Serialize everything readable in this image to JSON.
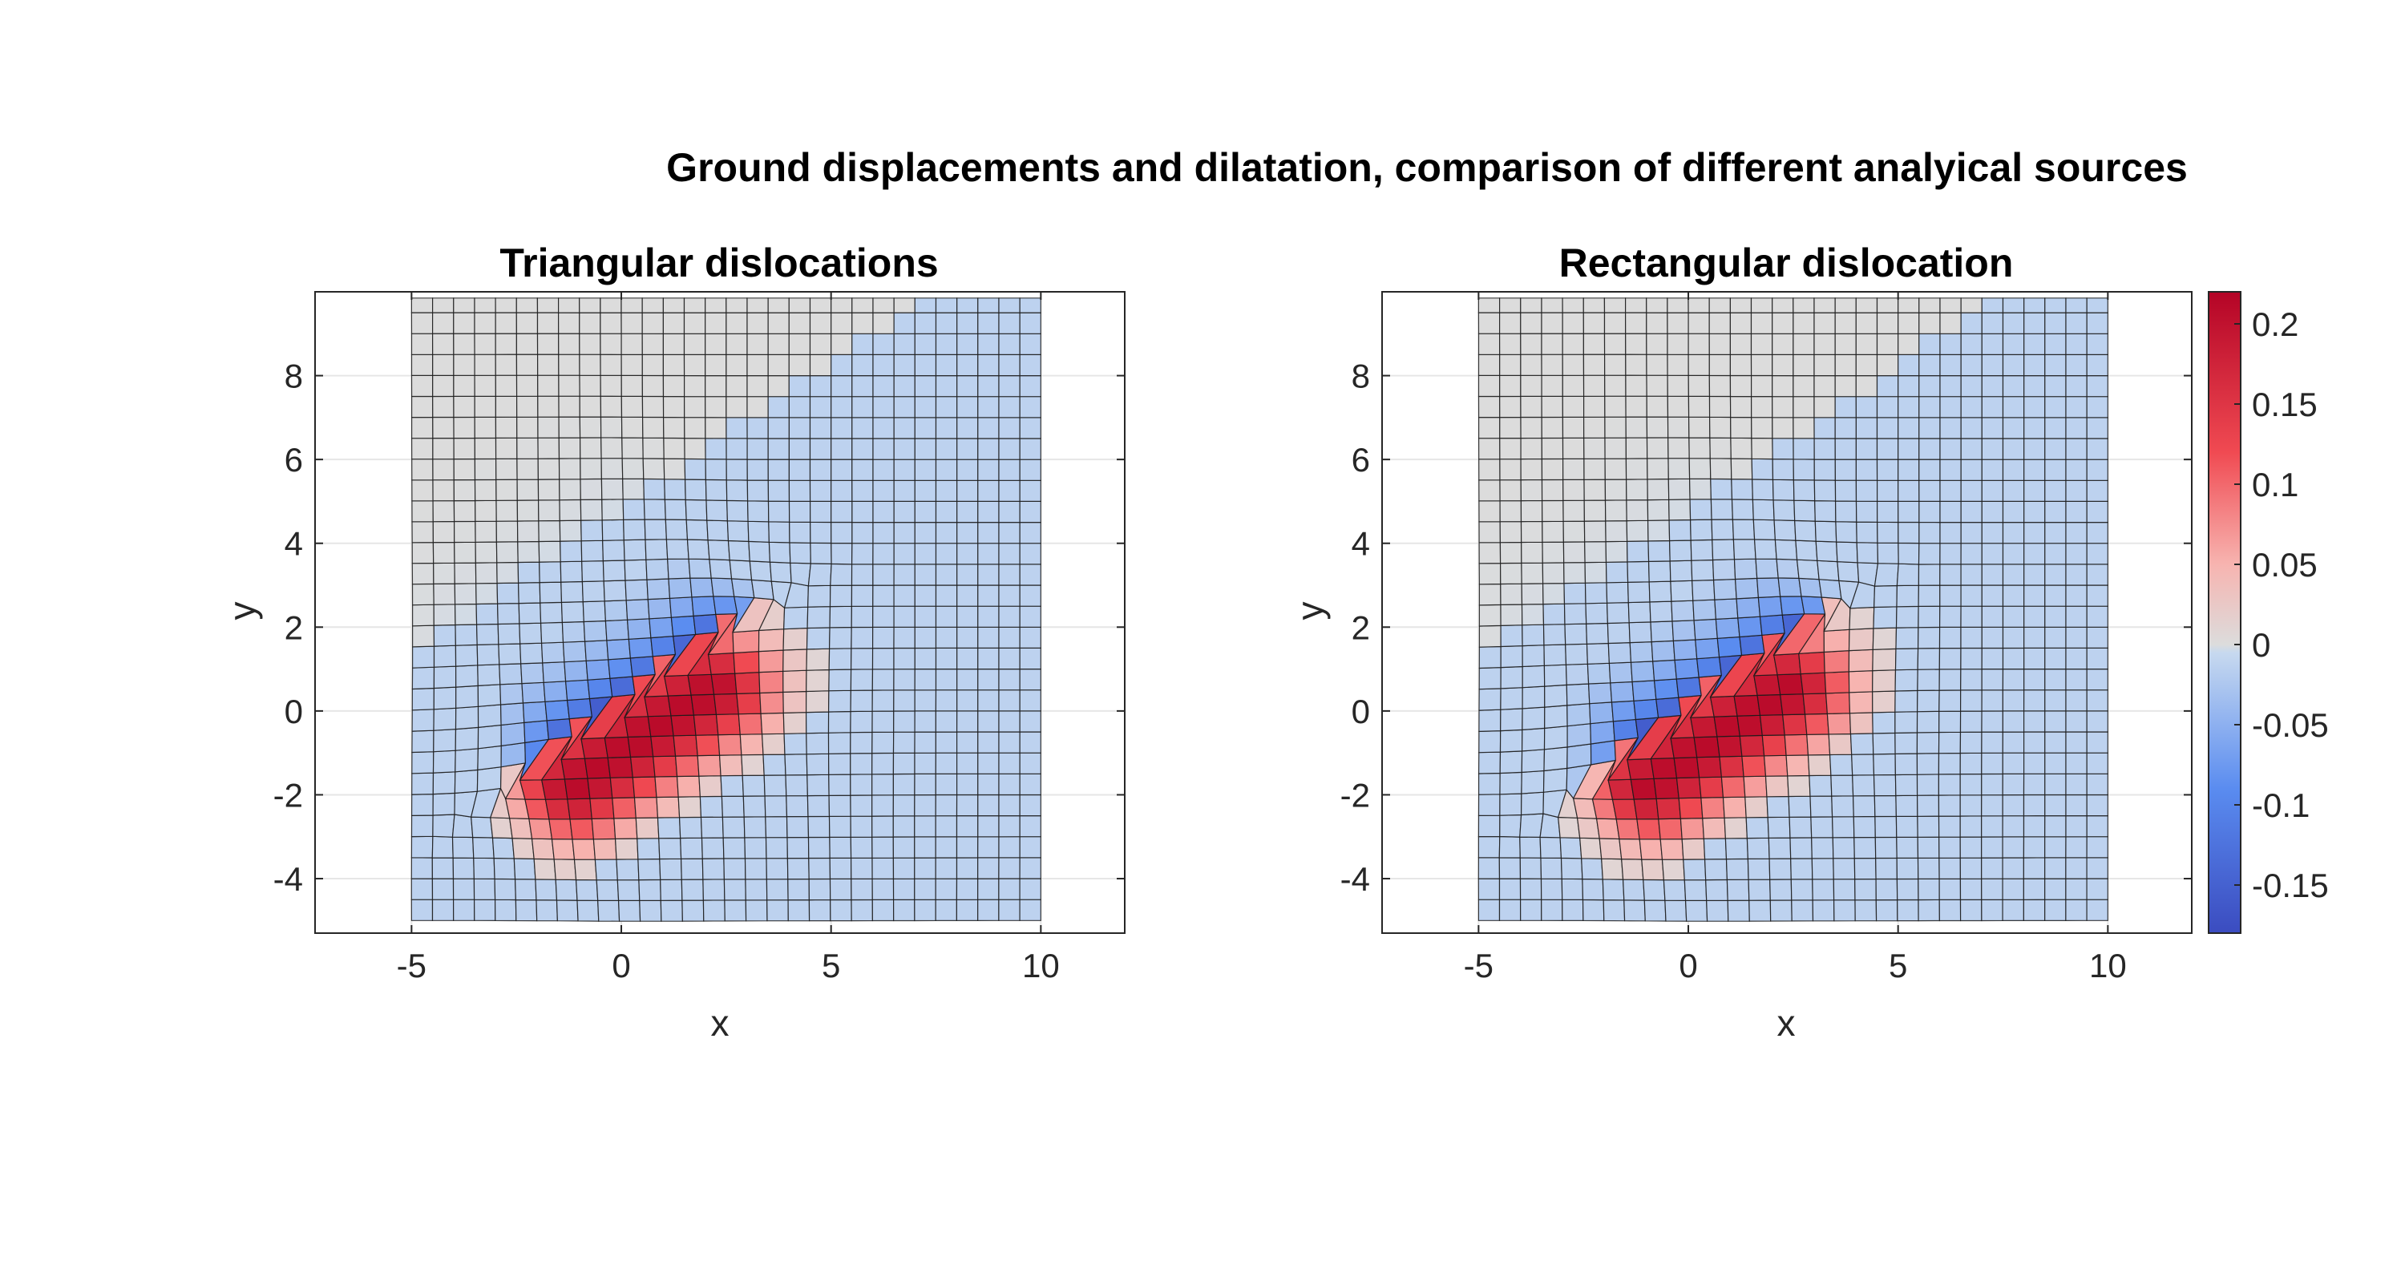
{
  "figure": {
    "title": "Ground displacements and dilatation, comparison of different analyical sources"
  },
  "colors": {
    "neg_extreme": "#3b4cc0",
    "neg": "#5a8cf0",
    "zero_blue": "#c7d9ef",
    "zero": "#dcdcdc",
    "pos_light": "#f7b4b0",
    "pos": "#f04a52",
    "pos_extreme": "#b40426",
    "grid_line": "#1a1a1a",
    "axes_box": "#262626"
  },
  "chart_data": [
    {
      "type": "heatmap",
      "title": "Triangular dislocations",
      "xlabel": "x",
      "ylabel": "y",
      "xlim": [
        -7.3,
        12.0
      ],
      "ylim": [
        -5.3,
        10.0
      ],
      "xticks": [
        "-5",
        "0",
        "5",
        "10"
      ],
      "yticks": [
        "-4",
        "-2",
        "0",
        "2",
        "4",
        "6",
        "8"
      ],
      "grid": true,
      "mesh": {
        "x_range": [
          -5,
          10
        ],
        "y_range": [
          -5,
          10
        ],
        "cells": 30
      },
      "source": {
        "center": [
          0.3,
          0.2
        ],
        "strike_deg": 35,
        "length": 6.5
      },
      "color_quantity": "dilatation",
      "clim": [
        -0.18,
        0.22
      ]
    },
    {
      "type": "heatmap",
      "title": "Rectangular dislocation",
      "xlabel": "x",
      "ylabel": "y",
      "xlim": [
        -7.3,
        12.0
      ],
      "ylim": [
        -5.3,
        10.0
      ],
      "xticks": [
        "-5",
        "0",
        "5",
        "10"
      ],
      "yticks": [
        "-4",
        "-2",
        "0",
        "2",
        "4",
        "6",
        "8"
      ],
      "grid": true,
      "mesh": {
        "x_range": [
          -5,
          10
        ],
        "y_range": [
          -5,
          10
        ],
        "cells": 30
      },
      "source": {
        "center": [
          0.5,
          0.2
        ],
        "strike_deg": 35,
        "length": 6.5
      },
      "color_quantity": "dilatation",
      "clim": [
        -0.18,
        0.22
      ]
    }
  ],
  "colorbar": {
    "range": [
      -0.18,
      0.22
    ],
    "ticks": [
      "0.2",
      "0.15",
      "0.1",
      "0.05",
      "0",
      "-0.05",
      "-0.1",
      "-0.15"
    ],
    "tick_values": [
      0.2,
      0.15,
      0.1,
      0.05,
      0,
      -0.05,
      -0.1,
      -0.15
    ]
  }
}
